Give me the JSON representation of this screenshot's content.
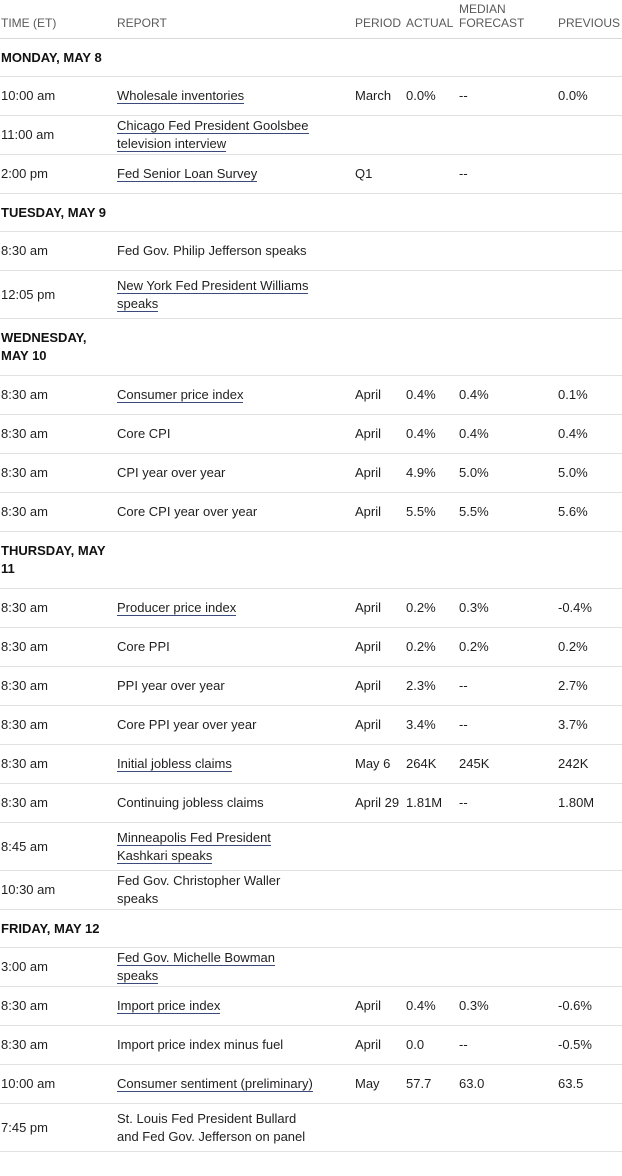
{
  "headers": {
    "time": "TIME (ET)",
    "report": "REPORT",
    "period": "PERIOD",
    "actual": "ACTUAL",
    "forecast": "MEDIAN FORECAST",
    "previous": "PREVIOUS"
  },
  "days": [
    {
      "label": "MONDAY, MAY 8",
      "events": [
        {
          "time": "10:00 am",
          "report": "Wholesale inventories",
          "link": true,
          "period": "March",
          "actual": "0.0%",
          "forecast": "--",
          "previous": "0.0%"
        },
        {
          "time": "11:00 am",
          "report": "Chicago Fed President Goolsbee television interview",
          "link": true,
          "period": "",
          "actual": "",
          "forecast": "",
          "previous": ""
        },
        {
          "time": "2:00 pm",
          "report": "Fed Senior Loan Survey",
          "link": true,
          "period": "Q1",
          "actual": "",
          "forecast": "--",
          "previous": ""
        }
      ]
    },
    {
      "label": "TUESDAY, MAY 9",
      "events": [
        {
          "time": "8:30 am",
          "report": "Fed Gov. Philip Jefferson speaks",
          "link": false,
          "period": "",
          "actual": "",
          "forecast": "",
          "previous": ""
        },
        {
          "time": "12:05 pm",
          "report": "New York Fed President Williams speaks",
          "link": true,
          "period": "",
          "actual": "",
          "forecast": "",
          "previous": ""
        }
      ]
    },
    {
      "label": "WEDNESDAY, MAY 10",
      "events": [
        {
          "time": "8:30 am",
          "report": "Consumer price index",
          "link": true,
          "period": "April",
          "actual": "0.4%",
          "forecast": "0.4%",
          "previous": "0.1%"
        },
        {
          "time": "8:30 am",
          "report": "Core CPI",
          "link": false,
          "period": "April",
          "actual": "0.4%",
          "forecast": "0.4%",
          "previous": "0.4%"
        },
        {
          "time": "8:30 am",
          "report": "CPI year over year",
          "link": false,
          "period": "April",
          "actual": "4.9%",
          "forecast": "5.0%",
          "previous": "5.0%"
        },
        {
          "time": "8:30 am",
          "report": "Core CPI year over year",
          "link": false,
          "period": "April",
          "actual": "5.5%",
          "forecast": "5.5%",
          "previous": "5.6%"
        }
      ]
    },
    {
      "label": "THURSDAY, MAY 11",
      "events": [
        {
          "time": "8:30 am",
          "report": "Producer price index",
          "link": true,
          "period": "April",
          "actual": "0.2%",
          "forecast": "0.3%",
          "previous": "-0.4%"
        },
        {
          "time": "8:30 am",
          "report": "Core PPI",
          "link": false,
          "period": "April",
          "actual": "0.2%",
          "forecast": "0.2%",
          "previous": "0.2%"
        },
        {
          "time": "8:30 am",
          "report": "PPI year over year",
          "link": false,
          "period": "April",
          "actual": "2.3%",
          "forecast": "--",
          "previous": "2.7%"
        },
        {
          "time": "8:30 am",
          "report": "Core PPI year over year",
          "link": false,
          "period": "April",
          "actual": "3.4%",
          "forecast": "--",
          "previous": "3.7%"
        },
        {
          "time": "8:30 am",
          "report": "Initial jobless claims",
          "link": true,
          "period": "May 6",
          "actual": "264K",
          "forecast": "245K",
          "previous": "242K"
        },
        {
          "time": "8:30 am",
          "report": "Continuing jobless claims",
          "link": false,
          "period": "April 29",
          "actual": "1.81M",
          "forecast": "--",
          "previous": "1.80M"
        },
        {
          "time": "8:45 am",
          "report": "Minneapolis Fed President Kashkari speaks",
          "link": true,
          "period": "",
          "actual": "",
          "forecast": "",
          "previous": ""
        },
        {
          "time": "10:30 am",
          "report": "Fed Gov. Christopher Waller speaks",
          "link": false,
          "period": "",
          "actual": "",
          "forecast": "",
          "previous": ""
        }
      ]
    },
    {
      "label": "FRIDAY, MAY 12",
      "events": [
        {
          "time": "3:00 am",
          "report": "Fed Gov. Michelle Bowman speaks",
          "link": true,
          "period": "",
          "actual": "",
          "forecast": "",
          "previous": ""
        },
        {
          "time": "8:30 am",
          "report": "Import price index",
          "link": true,
          "period": "April",
          "actual": "0.4%",
          "forecast": "0.3%",
          "previous": "-0.6%"
        },
        {
          "time": "8:30 am",
          "report": "Import price index minus fuel",
          "link": false,
          "period": "April",
          "actual": "0.0",
          "forecast": "--",
          "previous": "-0.5%"
        },
        {
          "time": "10:00 am",
          "report": "Consumer sentiment (preliminary)",
          "link": true,
          "period": "May",
          "actual": "57.7",
          "forecast": "63.0",
          "previous": "63.5"
        },
        {
          "time": "7:45 pm",
          "report": "St. Louis Fed President Bullard and Fed Gov. Jefferson on panel",
          "link": false,
          "period": "",
          "actual": "",
          "forecast": "",
          "previous": ""
        }
      ]
    }
  ]
}
